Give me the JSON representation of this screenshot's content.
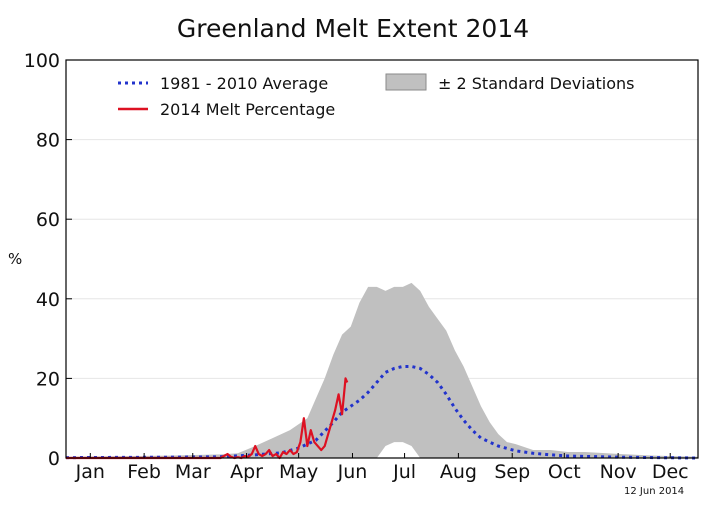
{
  "chart_data": {
    "type": "area",
    "title": "Greenland Melt Extent 2014",
    "ylabel": "%",
    "xlabel": "",
    "date_stamp": "12 Jun 2014",
    "ylim": [
      0,
      100
    ],
    "yticks": [
      0,
      20,
      40,
      60,
      80,
      100
    ],
    "xlim_day_of_year": [
      1,
      365
    ],
    "x_tick_labels": [
      "Jan",
      "Feb",
      "Mar",
      "Apr",
      "May",
      "Jun",
      "Jul",
      "Aug",
      "Sep",
      "Oct",
      "Nov",
      "Dec"
    ],
    "x_tick_days": [
      15,
      46,
      74,
      105,
      135,
      166,
      196,
      227,
      258,
      288,
      319,
      349
    ],
    "grid": "horizontal",
    "legend": [
      {
        "label": "1981 - 2010 Average",
        "style": "dotted",
        "color": "#2233cc"
      },
      {
        "label": "2014 Melt Percentage",
        "style": "solid",
        "color": "#dd1122"
      },
      {
        "label": "± 2 Standard Deviations",
        "style": "band",
        "color": "#c0c0c0"
      }
    ],
    "series": [
      {
        "name": "1981 - 2010 Average",
        "x": [
          1,
          60,
          90,
          110,
          125,
          135,
          145,
          155,
          160,
          165,
          170,
          175,
          180,
          185,
          190,
          195,
          200,
          205,
          210,
          215,
          220,
          225,
          230,
          235,
          240,
          250,
          260,
          270,
          280,
          290,
          300,
          320,
          340,
          365
        ],
        "y": [
          0.1,
          0.2,
          0.3,
          0.8,
          1.3,
          2.5,
          4.5,
          9,
          11.5,
          13,
          14.5,
          16.5,
          19,
          21.5,
          22.5,
          23,
          23,
          22.5,
          21,
          19,
          16,
          12.5,
          9.5,
          7,
          5,
          3,
          1.8,
          1.2,
          0.8,
          0.5,
          0.4,
          0.2,
          0.1,
          0
        ]
      },
      {
        "name": "± 2 Standard Deviations upper",
        "x": [
          1,
          60,
          90,
          100,
          110,
          120,
          130,
          140,
          145,
          150,
          155,
          160,
          165,
          170,
          175,
          180,
          185,
          190,
          195,
          200,
          205,
          210,
          215,
          220,
          225,
          230,
          235,
          240,
          245,
          250,
          255,
          260,
          270,
          280,
          290,
          300,
          320,
          340,
          365
        ],
        "y": [
          0.3,
          0.6,
          0.9,
          1.2,
          3,
          5,
          7,
          10,
          15,
          20,
          26,
          31,
          33,
          39,
          43,
          43,
          42,
          43,
          43,
          44,
          42,
          38,
          35,
          32,
          27,
          23,
          18,
          13,
          9,
          6,
          4,
          3.5,
          2,
          2,
          1.5,
          1.5,
          1,
          0.6,
          0.3
        ]
      },
      {
        "name": "± 2 Standard Deviations lower",
        "x": [
          1,
          150,
          170,
          180,
          185,
          190,
          195,
          200,
          205,
          210,
          365
        ],
        "y": [
          0,
          0,
          0,
          0,
          3,
          4,
          4,
          3,
          0,
          0,
          0
        ]
      },
      {
        "name": "2014 Melt Percentage",
        "x": [
          1,
          90,
          92,
          94,
          96,
          98,
          100,
          102,
          104,
          106,
          108,
          110,
          112,
          114,
          116,
          118,
          120,
          122,
          124,
          126,
          128,
          130,
          132,
          134,
          136,
          138,
          140,
          142,
          144,
          146,
          148,
          150,
          152,
          154,
          156,
          158,
          160,
          162,
          163
        ],
        "y": [
          0,
          0,
          0.5,
          1,
          0.3,
          0,
          0.2,
          0,
          0.5,
          0.3,
          1,
          3,
          1,
          0.5,
          1,
          2,
          0.5,
          1,
          0,
          1.5,
          1,
          2,
          1,
          1.5,
          4,
          10,
          3,
          7,
          4,
          3,
          2,
          3,
          6,
          9,
          12,
          16,
          11,
          20,
          19
        ]
      }
    ]
  }
}
